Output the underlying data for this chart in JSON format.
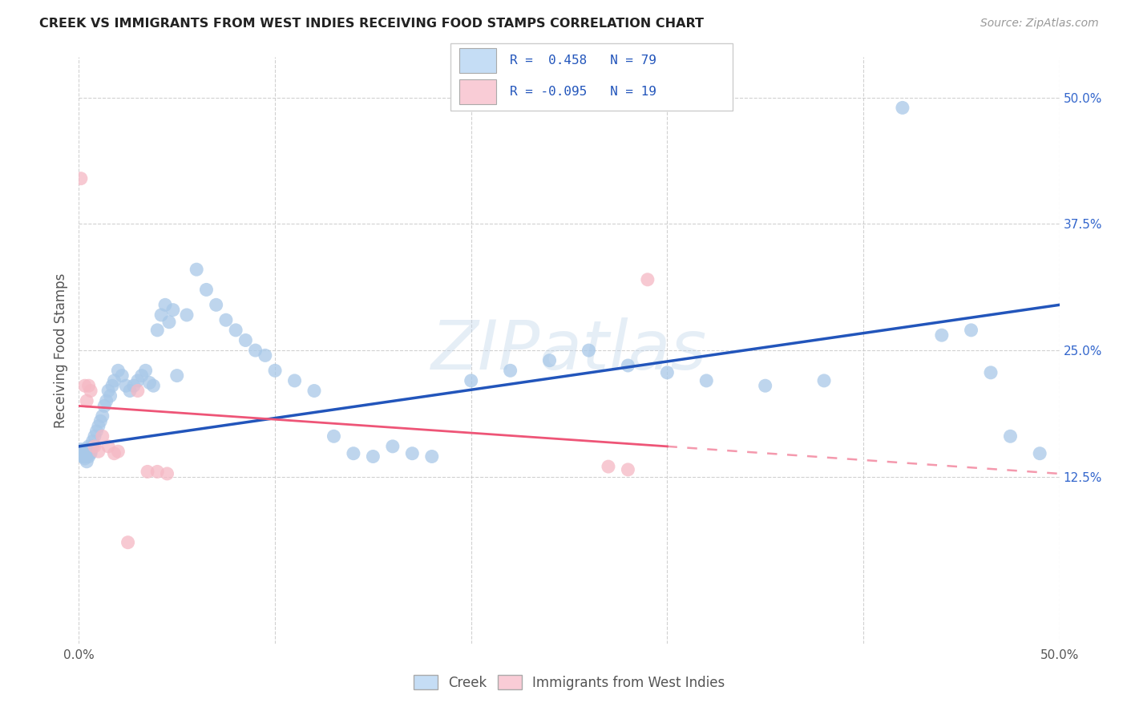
{
  "title": "CREEK VS IMMIGRANTS FROM WEST INDIES RECEIVING FOOD STAMPS CORRELATION CHART",
  "source": "Source: ZipAtlas.com",
  "ylabel": "Receiving Food Stamps",
  "xlim": [
    0.0,
    0.5
  ],
  "ylim": [
    -0.04,
    0.54
  ],
  "yticks": [
    0.125,
    0.25,
    0.375,
    0.5
  ],
  "yticklabels": [
    "12.5%",
    "25.0%",
    "37.5%",
    "50.0%"
  ],
  "background_color": "#ffffff",
  "grid_color": "#cccccc",
  "watermark": "ZIPatlas",
  "blue_dot_color": "#a8c8e8",
  "pink_dot_color": "#f5b8c4",
  "blue_line_color": "#2255bb",
  "pink_line_color": "#ee5577",
  "legend_blue_bg": "#c5ddf5",
  "legend_pink_bg": "#f9ccd6",
  "creek_x": [
    0.001,
    0.001,
    0.002,
    0.002,
    0.002,
    0.003,
    0.003,
    0.003,
    0.003,
    0.004,
    0.004,
    0.004,
    0.005,
    0.005,
    0.005,
    0.006,
    0.006,
    0.007,
    0.007,
    0.008,
    0.009,
    0.01,
    0.011,
    0.012,
    0.013,
    0.014,
    0.015,
    0.016,
    0.017,
    0.018,
    0.02,
    0.022,
    0.024,
    0.026,
    0.028,
    0.03,
    0.032,
    0.034,
    0.036,
    0.038,
    0.04,
    0.042,
    0.044,
    0.046,
    0.048,
    0.05,
    0.055,
    0.06,
    0.065,
    0.07,
    0.075,
    0.08,
    0.085,
    0.09,
    0.095,
    0.1,
    0.11,
    0.12,
    0.13,
    0.14,
    0.15,
    0.16,
    0.17,
    0.18,
    0.2,
    0.22,
    0.24,
    0.26,
    0.28,
    0.3,
    0.32,
    0.35,
    0.38,
    0.42,
    0.44,
    0.455,
    0.465,
    0.475,
    0.49
  ],
  "creek_y": [
    0.148,
    0.152,
    0.145,
    0.15,
    0.148,
    0.143,
    0.148,
    0.152,
    0.145,
    0.14,
    0.148,
    0.152,
    0.145,
    0.148,
    0.155,
    0.15,
    0.148,
    0.155,
    0.16,
    0.165,
    0.17,
    0.175,
    0.18,
    0.185,
    0.195,
    0.2,
    0.21,
    0.205,
    0.215,
    0.22,
    0.23,
    0.225,
    0.215,
    0.21,
    0.215,
    0.22,
    0.225,
    0.23,
    0.218,
    0.215,
    0.27,
    0.285,
    0.295,
    0.278,
    0.29,
    0.225,
    0.285,
    0.33,
    0.31,
    0.295,
    0.28,
    0.27,
    0.26,
    0.25,
    0.245,
    0.23,
    0.22,
    0.21,
    0.165,
    0.148,
    0.145,
    0.155,
    0.148,
    0.145,
    0.22,
    0.23,
    0.24,
    0.25,
    0.235,
    0.228,
    0.22,
    0.215,
    0.22,
    0.49,
    0.265,
    0.27,
    0.228,
    0.165,
    0.148
  ],
  "west_indies_x": [
    0.001,
    0.003,
    0.004,
    0.005,
    0.006,
    0.008,
    0.01,
    0.012,
    0.015,
    0.018,
    0.02,
    0.025,
    0.03,
    0.035,
    0.04,
    0.045,
    0.27,
    0.28,
    0.29
  ],
  "west_indies_y": [
    0.42,
    0.215,
    0.2,
    0.215,
    0.21,
    0.155,
    0.15,
    0.165,
    0.155,
    0.148,
    0.15,
    0.06,
    0.21,
    0.13,
    0.13,
    0.128,
    0.135,
    0.132,
    0.32
  ],
  "blue_line_x0": 0.0,
  "blue_line_y0": 0.155,
  "blue_line_x1": 0.5,
  "blue_line_y1": 0.295,
  "pink_line_x0": 0.0,
  "pink_line_y0": 0.195,
  "pink_line_x1_solid": 0.3,
  "pink_line_y1_solid": 0.155,
  "pink_line_x1_dash": 0.5,
  "pink_line_y1_dash": 0.128
}
